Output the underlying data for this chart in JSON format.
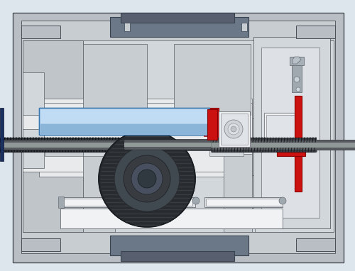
{
  "bg_color": "#dde5ed",
  "outer_color": "#b8bec4",
  "body_color": "#c8cdd2",
  "inner_color": "#d2d7dc",
  "light_gray": "#dde0e4",
  "lighter_gray": "#e8eaec",
  "dark_bracket": "#6a7888",
  "mid_gray": "#a0a8b0",
  "blue_light": "#aacce8",
  "blue_mid": "#88aacc",
  "red_accent": "#cc1111",
  "white_part": "#f0f2f4",
  "off_white": "#e0e4e8",
  "gear_dark": "#282c30",
  "gear_mid": "#404850",
  "gear_light": "#606870",
  "shaft_dark": "#303438",
  "shaft_mid": "#585c60",
  "shaft_light": "#909898",
  "dark_blue_strip": "#1a3060"
}
